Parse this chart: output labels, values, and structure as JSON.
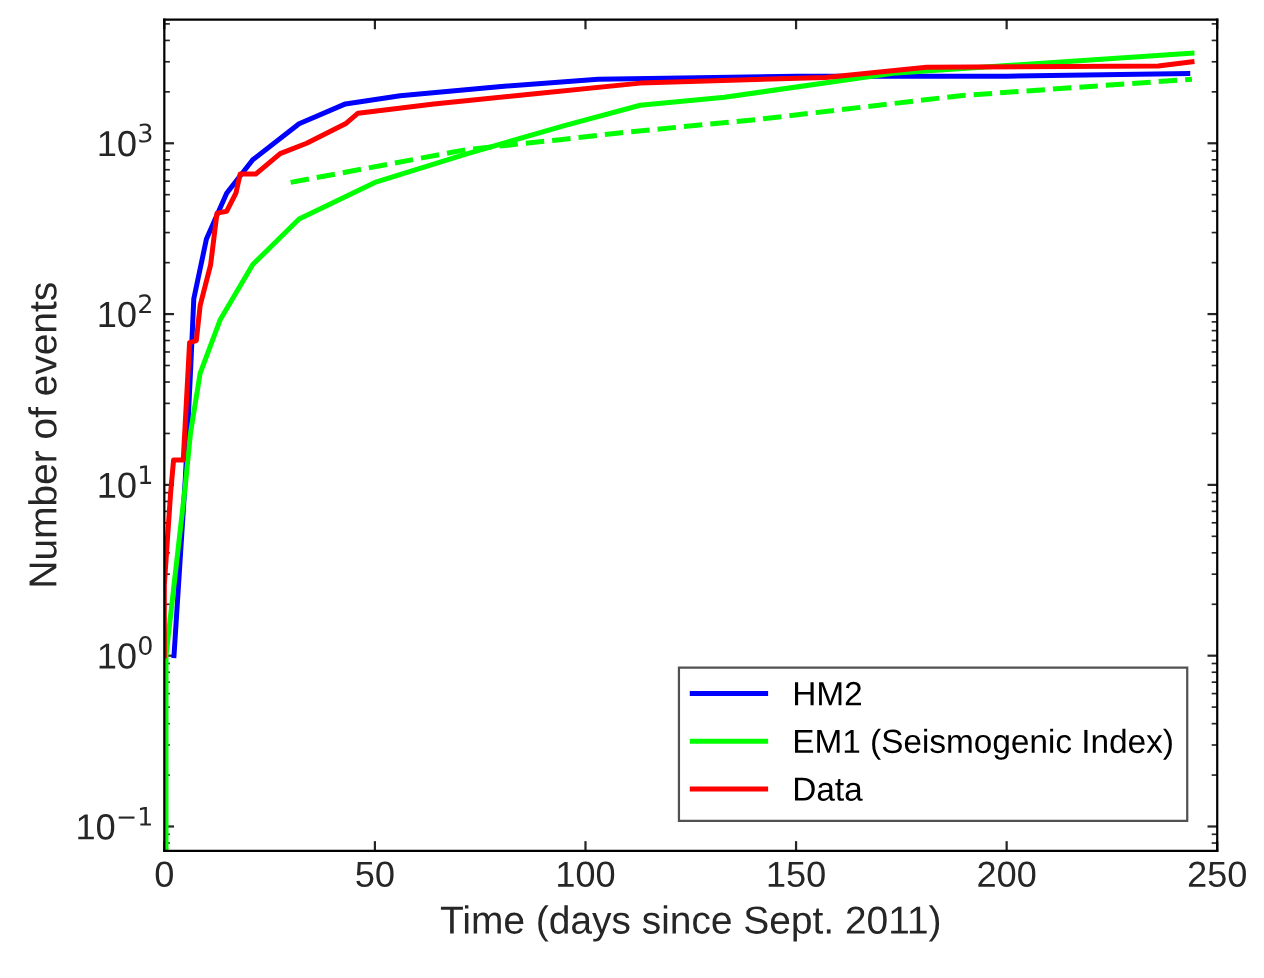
{
  "chart_data": {
    "type": "line",
    "xlabel": "Time (days since Sept. 2011)",
    "ylabel": "Number of events",
    "log": "y",
    "grid": false,
    "legend": "bottom right",
    "xlim": [
      0,
      250
    ],
    "xticks": [
      0,
      50,
      100,
      150,
      200,
      250
    ],
    "ylim": [
      0.072,
      5300
    ],
    "yticks": [
      {
        "value": 0.1,
        "label": "10$^{−1}$"
      },
      {
        "value": 1,
        "label": "10$^{0}$"
      },
      {
        "value": 10,
        "label": "10$^{1}$"
      },
      {
        "value": 100,
        "label": "10$^{2}$"
      },
      {
        "value": 1000,
        "label": "10$^{3}$"
      }
    ],
    "series": [
      {
        "name": "HM2",
        "color": "#0000ff",
        "x": [
          2.3,
          5,
          6.2,
          7,
          10,
          14.8,
          21,
          32,
          43,
          56,
          80,
          103,
          150,
          200,
          243
        ],
        "values": [
          1,
          11,
          45,
          123,
          275,
          510,
          800,
          1300,
          1700,
          1900,
          2150,
          2370,
          2470,
          2470,
          2560
        ]
      },
      {
        "name": "EM1 (Seismogenic Index)",
        "color": "#00ff00",
        "x": [
          0.4,
          0.4,
          5,
          6.2,
          8.5,
          13.3,
          21,
          32,
          50,
          72,
          95,
          113,
          133,
          173,
          244
        ],
        "values": [
          0.072,
          1,
          10,
          20,
          45,
          93,
          195,
          360,
          590,
          870,
          1270,
          1670,
          1860,
          2570,
          3370
        ]
      },
      {
        "name": "Data",
        "color": "#ff0000",
        "x": [
          0,
          0,
          1.5,
          2.2,
          4.5,
          6,
          7.6,
          8.5,
          11,
          12.5,
          14.8,
          17,
          18,
          21.7,
          27.5,
          33.8,
          43,
          46,
          64,
          88,
          113,
          157,
          181,
          236,
          244
        ],
        "values": [
          1,
          2.6,
          9,
          14,
          14,
          68,
          70,
          112,
          195,
          390,
          400,
          510,
          660,
          660,
          870,
          1000,
          1300,
          1500,
          1700,
          1950,
          2250,
          2430,
          2790,
          2830,
          3000
        ]
      },
      {
        "color": "#00ff00",
        "line_style": "dashed",
        "x": [
          30,
          72,
          94,
          108,
          141,
          189,
          244
        ],
        "values": [
          590,
          920,
          1050,
          1150,
          1380,
          1900,
          2370
        ]
      }
    ]
  }
}
